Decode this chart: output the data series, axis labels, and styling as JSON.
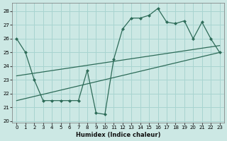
{
  "xlabel": "Humidex (Indice chaleur)",
  "bg_color": "#cce8e4",
  "grid_color": "#a8d4d0",
  "line_color": "#2d6b58",
  "xlim": [
    -0.5,
    23.5
  ],
  "ylim": [
    19.9,
    28.6
  ],
  "xticks": [
    0,
    1,
    2,
    3,
    4,
    5,
    6,
    7,
    8,
    9,
    10,
    11,
    12,
    13,
    14,
    15,
    16,
    17,
    18,
    19,
    20,
    21,
    22,
    23
  ],
  "yticks": [
    20,
    21,
    22,
    23,
    24,
    25,
    26,
    27,
    28
  ],
  "series1_x": [
    0,
    1,
    2,
    3,
    4,
    5,
    6,
    7,
    8,
    9,
    10,
    11,
    12,
    13,
    14,
    15,
    16,
    17,
    18,
    19,
    20,
    21,
    22,
    23
  ],
  "series1_y": [
    26.0,
    25.0,
    23.0,
    21.5,
    21.5,
    21.5,
    21.5,
    21.5,
    23.7,
    20.6,
    20.5,
    24.5,
    26.7,
    27.5,
    27.5,
    27.7,
    28.2,
    27.2,
    27.1,
    27.3,
    26.0,
    27.2,
    26.0,
    25.0
  ],
  "trend1_x": [
    0,
    23
  ],
  "trend1_y": [
    23.3,
    25.5
  ],
  "trend2_x": [
    0,
    23
  ],
  "trend2_y": [
    21.5,
    25.0
  ]
}
